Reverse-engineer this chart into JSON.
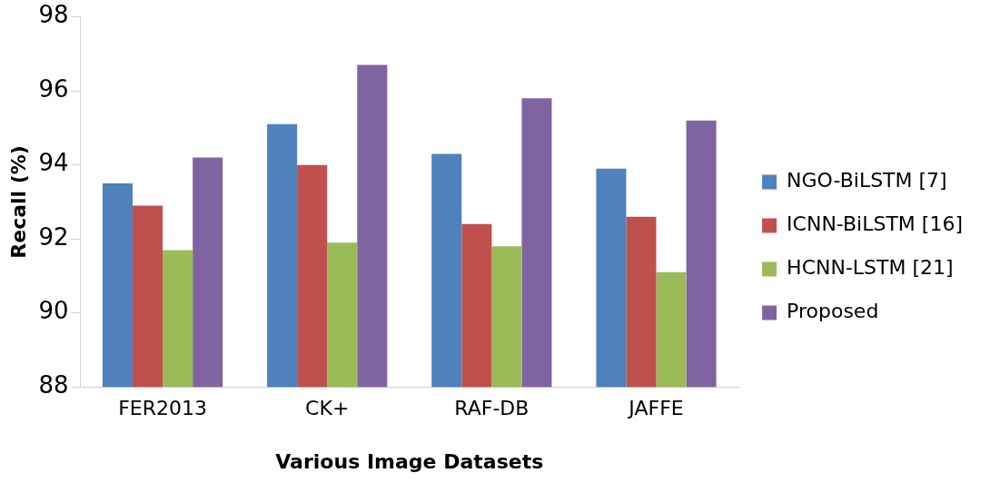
{
  "chart_data": {
    "type": "bar",
    "xlabel": "Various Image Datasets",
    "ylabel": "Recall (%)",
    "categories": [
      "FER2013",
      "CK+",
      "RAF-DB",
      "JAFFE"
    ],
    "series": [
      {
        "name": "NGO-BiLSTM [7]",
        "color": "#4f81bd",
        "values": [
          93.5,
          95.1,
          94.3,
          93.9
        ]
      },
      {
        "name": "ICNN-BiLSTM [16]",
        "color": "#c0504d",
        "values": [
          92.9,
          94.0,
          92.4,
          92.6
        ]
      },
      {
        "name": "HCNN-LSTM [21]",
        "color": "#9bbb59",
        "values": [
          91.7,
          91.9,
          91.8,
          91.1
        ]
      },
      {
        "name": "Proposed",
        "color": "#8064a2",
        "values": [
          94.2,
          96.7,
          95.8,
          95.2
        ]
      }
    ],
    "ylim": [
      88,
      98
    ],
    "yticks": [
      88,
      90,
      92,
      94,
      96,
      98
    ],
    "grid": false,
    "legend": "right"
  }
}
